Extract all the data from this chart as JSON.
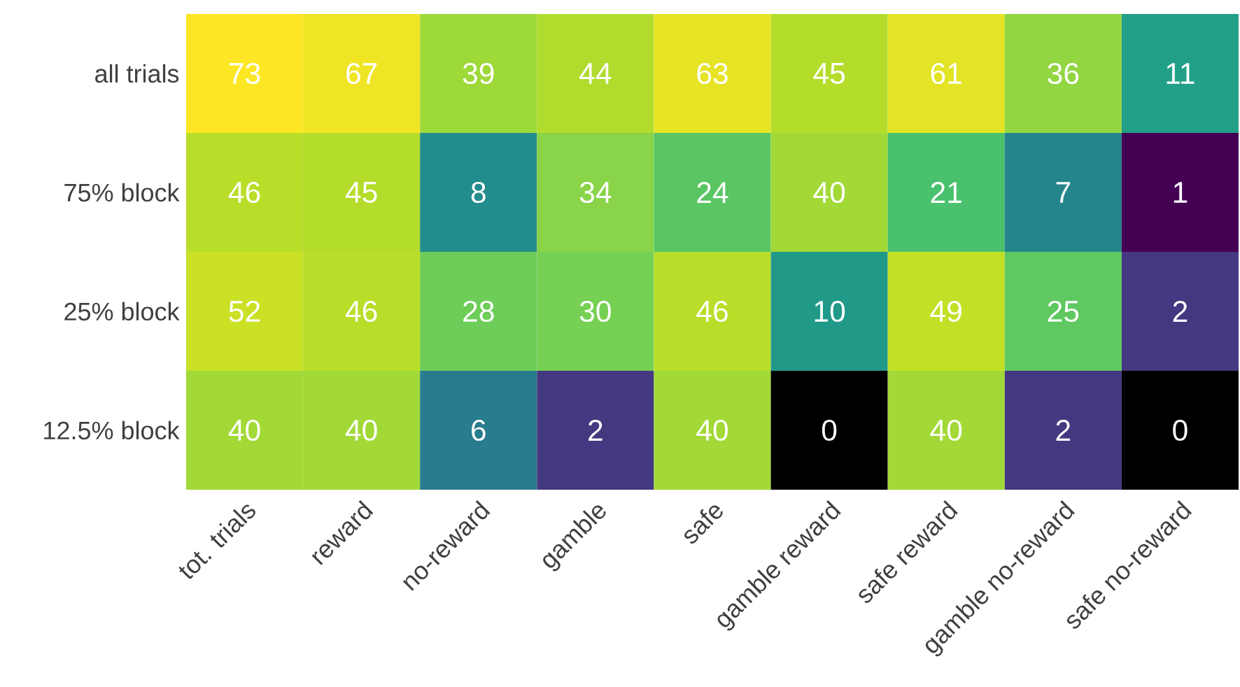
{
  "chart_data": {
    "type": "heatmap",
    "categories": [
      "tot. trials",
      "reward",
      "no-reward",
      "gamble",
      "safe",
      "gamble reward",
      "safe reward",
      "gamble no-reward",
      "safe no-reward"
    ],
    "y_categories": [
      "all trials",
      "75% block",
      "25% block",
      "12.5% block"
    ],
    "cells": [
      [
        73,
        67,
        39,
        44,
        63,
        45,
        61,
        36,
        11
      ],
      [
        46,
        45,
        8,
        34,
        24,
        40,
        21,
        7,
        1
      ],
      [
        52,
        46,
        28,
        30,
        46,
        10,
        49,
        25,
        2
      ],
      [
        40,
        40,
        6,
        2,
        40,
        0,
        40,
        2,
        0
      ]
    ],
    "data_labels": true
  }
}
